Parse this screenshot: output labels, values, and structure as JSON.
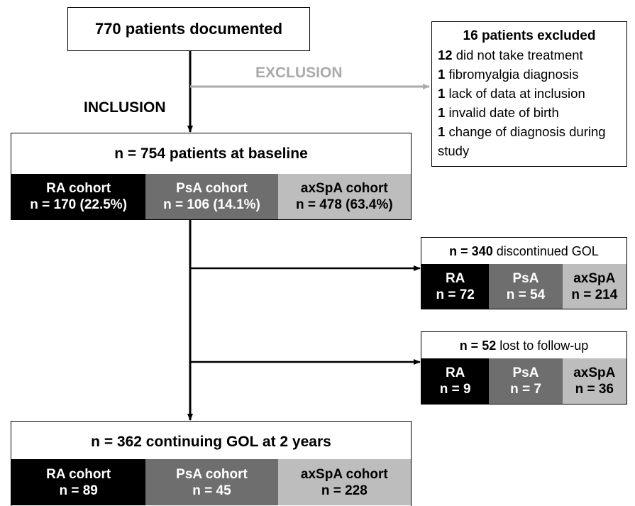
{
  "top_box": {
    "label": "770 patients documented"
  },
  "arrows": {
    "inclusion": "INCLUSION",
    "exclusion": "EXCLUSION"
  },
  "exclusion_box": {
    "title": "16 patients excluded",
    "items": [
      {
        "count": "12",
        "text": "did not take treatment"
      },
      {
        "count": "1",
        "text": "fibromyalgia diagnosis"
      },
      {
        "count": "1",
        "text": "lack of data at inclusion"
      },
      {
        "count": "1",
        "text": "invalid date of birth"
      },
      {
        "count": "1",
        "text": "change of diagnosis during study"
      }
    ]
  },
  "baseline": {
    "title": "n = 754 patients at baseline",
    "cohorts": [
      {
        "name": "RA cohort",
        "n": "n = 170 (22.5%)"
      },
      {
        "name": "PsA cohort",
        "n": "n = 106 (14.1%)"
      },
      {
        "name": "axSpA cohort",
        "n": "n = 478 (63.4%)"
      }
    ]
  },
  "discontinued": {
    "count": "n = 340",
    "text": "discontinued GOL",
    "cohorts": [
      {
        "name": "RA",
        "n": "n = 72"
      },
      {
        "name": "PsA",
        "n": "n = 54"
      },
      {
        "name": "axSpA",
        "n": "n = 214"
      }
    ]
  },
  "lost": {
    "count": "n = 52",
    "text": "lost to follow-up",
    "cohorts": [
      {
        "name": "RA",
        "n": "n = 9"
      },
      {
        "name": "PsA",
        "n": "n = 7"
      },
      {
        "name": "axSpA",
        "n": "n = 36"
      }
    ]
  },
  "final": {
    "title": "n = 362 continuing GOL at 2 years",
    "cohorts": [
      {
        "name": "RA cohort",
        "n": "n = 89"
      },
      {
        "name": "PsA cohort",
        "n": "n = 45"
      },
      {
        "name": "axSpA cohort",
        "n": "n = 228"
      }
    ]
  }
}
